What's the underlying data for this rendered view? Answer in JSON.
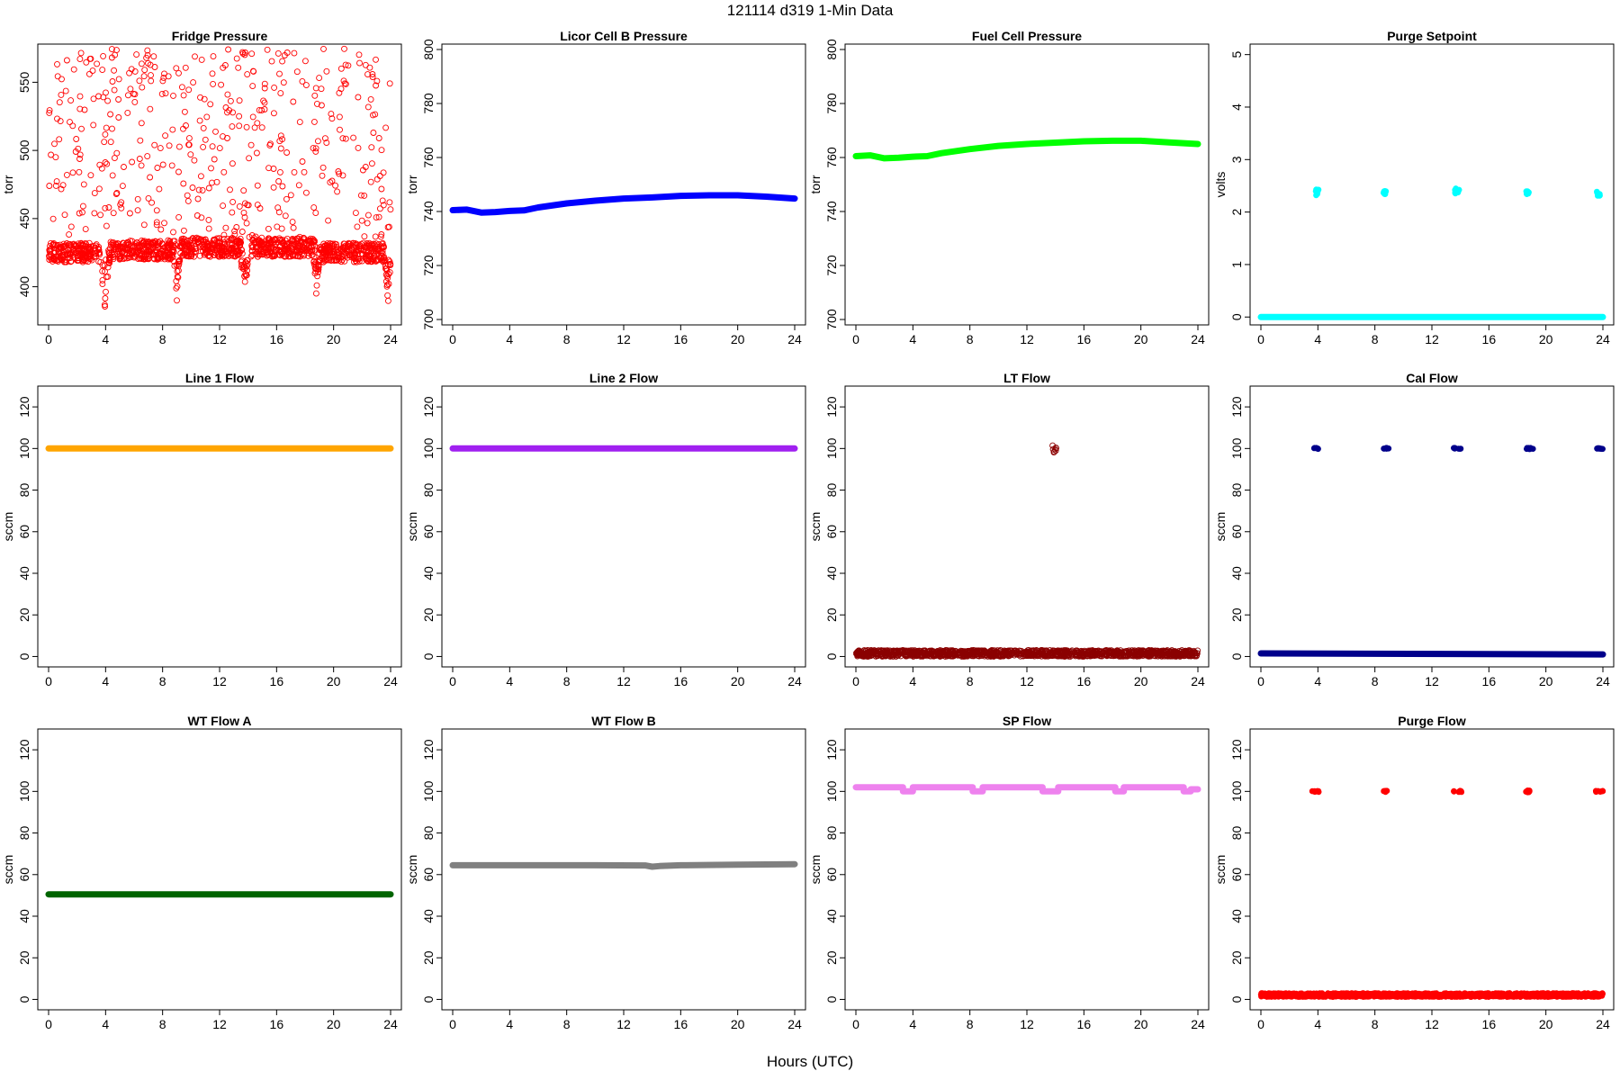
{
  "figure": {
    "title": "121114    d319    1-Min Data",
    "xlabel": "Hours (UTC)"
  },
  "chart_data": [
    {
      "type": "scatter",
      "title": "Fridge Pressure",
      "ylabel": "torr",
      "color": "#ff0000",
      "marker": "open-circle",
      "xlim": [
        0,
        24
      ],
      "ylim": [
        372,
        578
      ],
      "xticks": [
        0,
        4,
        8,
        12,
        16,
        20,
        24
      ],
      "yticks": [
        400,
        450,
        500,
        550
      ],
      "series": [
        {
          "kind": "band",
          "x": [
            0,
            3.6
          ],
          "y": [
            418,
            432
          ]
        },
        {
          "kind": "band",
          "x": [
            4.2,
            8.9
          ],
          "y": [
            420,
            434
          ]
        },
        {
          "kind": "band",
          "x": [
            9.2,
            13.6
          ],
          "y": [
            422,
            436
          ]
        },
        {
          "kind": "band",
          "x": [
            14.2,
            18.7
          ],
          "y": [
            422,
            436
          ]
        },
        {
          "kind": "band",
          "x": [
            19.0,
            23.6
          ],
          "y": [
            418,
            432
          ]
        },
        {
          "kind": "dip",
          "x": [
            3.6,
            4.3
          ],
          "y": [
            384,
            420
          ]
        },
        {
          "kind": "dip",
          "x": [
            8.8,
            9.2
          ],
          "y": [
            386,
            420
          ]
        },
        {
          "kind": "dip",
          "x": [
            13.5,
            14.0
          ],
          "y": [
            386,
            420
          ]
        },
        {
          "kind": "dip",
          "x": [
            18.6,
            19.0
          ],
          "y": [
            392,
            420
          ]
        },
        {
          "kind": "dip",
          "x": [
            23.6,
            24.0
          ],
          "y": [
            378,
            420
          ]
        },
        {
          "kind": "scatter",
          "x": [
            0,
            24
          ],
          "y": [
            436,
            575
          ]
        }
      ]
    },
    {
      "type": "line",
      "title": "Licor Cell B Pressure",
      "ylabel": "torr",
      "color": "#0000ff",
      "xlim": [
        0,
        24
      ],
      "ylim": [
        698,
        802
      ],
      "xticks": [
        0,
        4,
        8,
        12,
        16,
        20,
        24
      ],
      "yticks": [
        700,
        720,
        740,
        760,
        780,
        800
      ],
      "series": [
        {
          "kind": "line",
          "x": [
            0,
            1,
            2,
            3,
            4,
            5,
            6,
            8,
            10,
            12,
            14,
            16,
            18,
            20,
            22,
            24
          ],
          "y": [
            740.5,
            740.7,
            739.6,
            739.8,
            740.2,
            740.4,
            741.5,
            743.0,
            744.0,
            744.8,
            745.2,
            745.8,
            746.0,
            746.0,
            745.5,
            744.8
          ]
        }
      ]
    },
    {
      "type": "line",
      "title": "Fuel Cell Pressure",
      "ylabel": "torr",
      "color": "#00ff00",
      "xlim": [
        0,
        24
      ],
      "ylim": [
        698,
        802
      ],
      "xticks": [
        0,
        4,
        8,
        12,
        16,
        20,
        24
      ],
      "yticks": [
        700,
        720,
        740,
        760,
        780,
        800
      ],
      "series": [
        {
          "kind": "line",
          "x": [
            0,
            1,
            2,
            3,
            4,
            5,
            6,
            8,
            10,
            12,
            14,
            16,
            18,
            20,
            22,
            24
          ],
          "y": [
            760.5,
            760.8,
            759.7,
            759.9,
            760.3,
            760.5,
            761.6,
            763.1,
            764.3,
            765.0,
            765.5,
            766.0,
            766.2,
            766.2,
            765.6,
            765.0
          ]
        }
      ]
    },
    {
      "type": "scatter",
      "title": "Purge Setpoint",
      "ylabel": "volts",
      "color": "#00ffff",
      "xlim": [
        0,
        24
      ],
      "ylim": [
        -0.15,
        5.2
      ],
      "xticks": [
        0,
        4,
        8,
        12,
        16,
        20,
        24
      ],
      "yticks": [
        0,
        1,
        2,
        3,
        4,
        5
      ],
      "series": [
        {
          "kind": "line",
          "x": [
            0,
            24
          ],
          "y": [
            0,
            0
          ]
        },
        {
          "kind": "cluster",
          "x": [
            3.8,
            4.1
          ],
          "y": [
            2.32,
            2.45
          ]
        },
        {
          "kind": "cluster",
          "x": [
            8.6,
            8.8
          ],
          "y": [
            2.33,
            2.4
          ]
        },
        {
          "kind": "cluster",
          "x": [
            13.6,
            13.95
          ],
          "y": [
            2.35,
            2.45
          ]
        },
        {
          "kind": "cluster",
          "x": [
            18.6,
            18.8
          ],
          "y": [
            2.33,
            2.4
          ]
        },
        {
          "kind": "cluster",
          "x": [
            23.5,
            23.8
          ],
          "y": [
            2.3,
            2.4
          ]
        }
      ]
    },
    {
      "type": "line",
      "title": "Line 1 Flow",
      "ylabel": "sccm",
      "color": "#ffa500",
      "xlim": [
        0,
        24
      ],
      "ylim": [
        -5,
        130
      ],
      "xticks": [
        0,
        4,
        8,
        12,
        16,
        20,
        24
      ],
      "yticks": [
        0,
        20,
        40,
        60,
        80,
        100,
        120
      ],
      "series": [
        {
          "kind": "line",
          "x": [
            0,
            24
          ],
          "y": [
            100,
            100
          ]
        }
      ]
    },
    {
      "type": "line",
      "title": "Line 2 Flow",
      "ylabel": "sccm",
      "color": "#a020f0",
      "xlim": [
        0,
        24
      ],
      "ylim": [
        -5,
        130
      ],
      "xticks": [
        0,
        4,
        8,
        12,
        16,
        20,
        24
      ],
      "yticks": [
        0,
        20,
        40,
        60,
        80,
        100,
        120
      ],
      "series": [
        {
          "kind": "line",
          "x": [
            0,
            24
          ],
          "y": [
            100,
            100
          ]
        }
      ]
    },
    {
      "type": "scatter",
      "title": "LT Flow",
      "ylabel": "sccm",
      "color": "#8b0000",
      "marker": "open-circle",
      "xlim": [
        0,
        24
      ],
      "ylim": [
        -5,
        130
      ],
      "xticks": [
        0,
        4,
        8,
        12,
        16,
        20,
        24
      ],
      "yticks": [
        0,
        20,
        40,
        60,
        80,
        100,
        120
      ],
      "series": [
        {
          "kind": "band",
          "x": [
            0,
            24
          ],
          "y": [
            0,
            3
          ]
        },
        {
          "kind": "cluster",
          "x": [
            13.8,
            14.1
          ],
          "y": [
            98,
            101.5
          ]
        }
      ]
    },
    {
      "type": "scatter",
      "title": "Cal Flow",
      "ylabel": "sccm",
      "color": "#00008b",
      "xlim": [
        0,
        24
      ],
      "ylim": [
        -5,
        130
      ],
      "xticks": [
        0,
        4,
        8,
        12,
        16,
        20,
        24
      ],
      "yticks": [
        0,
        20,
        40,
        60,
        80,
        100,
        120
      ],
      "series": [
        {
          "kind": "line",
          "x": [
            0,
            24
          ],
          "y": [
            1.5,
            1.0
          ]
        },
        {
          "kind": "cluster",
          "x": [
            3.7,
            4.2
          ],
          "y": [
            99.7,
            100.3
          ]
        },
        {
          "kind": "cluster",
          "x": [
            8.6,
            9.0
          ],
          "y": [
            99.7,
            100.3
          ]
        },
        {
          "kind": "cluster",
          "x": [
            13.5,
            14.2
          ],
          "y": [
            99.7,
            100.3
          ]
        },
        {
          "kind": "cluster",
          "x": [
            18.6,
            19.1
          ],
          "y": [
            99.7,
            100.3
          ]
        },
        {
          "kind": "cluster",
          "x": [
            23.5,
            24.0
          ],
          "y": [
            99.7,
            100.3
          ]
        }
      ]
    },
    {
      "type": "line",
      "title": "WT Flow A",
      "ylabel": "sccm",
      "color": "#006400",
      "xlim": [
        0,
        24
      ],
      "ylim": [
        -5,
        130
      ],
      "xticks": [
        0,
        4,
        8,
        12,
        16,
        20,
        24
      ],
      "yticks": [
        0,
        20,
        40,
        60,
        80,
        100,
        120
      ],
      "series": [
        {
          "kind": "line",
          "x": [
            0,
            24
          ],
          "y": [
            50.5,
            50.5
          ]
        }
      ]
    },
    {
      "type": "line",
      "title": "WT Flow B",
      "ylabel": "sccm",
      "color": "#808080",
      "xlim": [
        0,
        24
      ],
      "ylim": [
        -5,
        130
      ],
      "xticks": [
        0,
        4,
        8,
        12,
        16,
        20,
        24
      ],
      "yticks": [
        0,
        20,
        40,
        60,
        80,
        100,
        120
      ],
      "series": [
        {
          "kind": "line",
          "x": [
            0,
            10,
            13.5,
            14.0,
            14.5,
            16,
            20,
            24
          ],
          "y": [
            64.5,
            64.5,
            64.4,
            63.8,
            64.1,
            64.5,
            64.8,
            65.0
          ]
        }
      ]
    },
    {
      "type": "line",
      "title": "SP Flow",
      "ylabel": "sccm",
      "color": "#ee82ee",
      "xlim": [
        0,
        24
      ],
      "ylim": [
        -5,
        130
      ],
      "xticks": [
        0,
        4,
        8,
        12,
        16,
        20,
        24
      ],
      "yticks": [
        0,
        20,
        40,
        60,
        80,
        100,
        120
      ],
      "series": [
        {
          "kind": "line",
          "x": [
            0,
            3.3,
            3.3,
            4.0,
            4.0,
            8.2,
            8.2,
            8.9,
            8.9,
            13.1,
            13.1,
            14.2,
            14.2,
            18.2,
            18.2,
            18.8,
            18.8,
            23.0,
            23.0,
            23.5,
            23.5,
            24
          ],
          "y": [
            102,
            102,
            100,
            100,
            102,
            102,
            100,
            100,
            102,
            102,
            100,
            100,
            102,
            102,
            100,
            100,
            102,
            102,
            100,
            100,
            101,
            101
          ]
        }
      ]
    },
    {
      "type": "scatter",
      "title": "Purge Flow",
      "ylabel": "sccm",
      "color": "#ff0000",
      "xlim": [
        0,
        24
      ],
      "ylim": [
        -5,
        130
      ],
      "xticks": [
        0,
        4,
        8,
        12,
        16,
        20,
        24
      ],
      "yticks": [
        0,
        20,
        40,
        60,
        80,
        100,
        120
      ],
      "series": [
        {
          "kind": "band",
          "x": [
            0,
            24
          ],
          "y": [
            1.2,
            3.0
          ]
        },
        {
          "kind": "cluster",
          "x": [
            3.6,
            4.1
          ],
          "y": [
            99.7,
            100.3
          ]
        },
        {
          "kind": "cluster",
          "x": [
            8.6,
            8.9
          ],
          "y": [
            99.7,
            100.3
          ]
        },
        {
          "kind": "cluster",
          "x": [
            13.5,
            14.2
          ],
          "y": [
            99.7,
            100.3
          ]
        },
        {
          "kind": "cluster",
          "x": [
            18.6,
            18.9
          ],
          "y": [
            99.5,
            100.5
          ]
        },
        {
          "kind": "cluster",
          "x": [
            23.5,
            24.0
          ],
          "y": [
            99.7,
            100.3
          ]
        }
      ]
    }
  ]
}
